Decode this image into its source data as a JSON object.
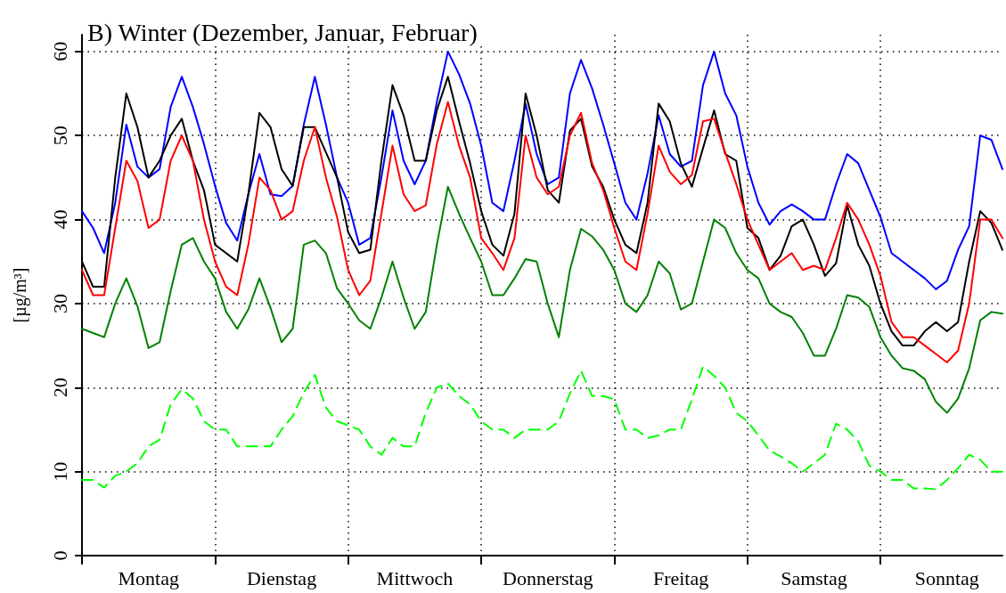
{
  "chart_data": {
    "type": "line",
    "title": "B) Winter (Dezember, Januar, Februar)",
    "ylabel": "[µg/m³]",
    "categories": [
      null,
      null,
      null,
      null,
      null,
      null,
      "Montag",
      null,
      null,
      null,
      null,
      null,
      null,
      null,
      null,
      null,
      null,
      null,
      "Dienstag",
      null,
      null,
      null,
      null,
      null,
      null,
      null,
      null,
      null,
      null,
      null,
      "Mittwoch",
      null,
      null,
      null,
      null,
      null,
      null,
      null,
      null,
      null,
      null,
      null,
      "Donnerstag",
      null,
      null,
      null,
      null,
      null,
      null,
      null,
      null,
      null,
      null,
      null,
      "Freitag",
      null,
      null,
      null,
      null,
      null,
      null,
      null,
      null,
      null,
      null,
      null,
      "Samstag",
      null,
      null,
      null,
      null,
      null,
      null,
      null,
      null,
      null,
      null,
      null,
      "Sonntag",
      null,
      null,
      null,
      null,
      null
    ],
    "ylim": [
      0,
      62
    ],
    "yticks": [
      0,
      10,
      20,
      30,
      40,
      50,
      60
    ],
    "grid": true,
    "marker": "none",
    "line_style": "solid",
    "series": [
      {
        "color": "#0000ff",
        "values": [
          41,
          39,
          36,
          42,
          51.3,
          46.3,
          45,
          46,
          53.4,
          57,
          53.4,
          49,
          44,
          39.6,
          37.5,
          43,
          47.8,
          43,
          42.8,
          44,
          51.3,
          57,
          51.3,
          45,
          42,
          37,
          37.8,
          45,
          53,
          47,
          44.2,
          47,
          54,
          60,
          57.3,
          53.8,
          48.8,
          42,
          41,
          47,
          53.8,
          47.8,
          44.2,
          45,
          55,
          59,
          55.6,
          51.3,
          46.7,
          42,
          40,
          45.5,
          52.4,
          47.8,
          46.3,
          47,
          56,
          60,
          55,
          52.4,
          46.3,
          42,
          39.4,
          41,
          41.8,
          41,
          40,
          40,
          44.2,
          47.8,
          46.7,
          43.5,
          40.3,
          36,
          35,
          34,
          33,
          31.7,
          32.7,
          36.4,
          39.2,
          50,
          49.5,
          46
        ]
      },
      {
        "color": "#000000",
        "values": [
          35,
          32,
          32,
          45,
          55,
          51,
          45,
          47,
          50,
          52,
          47,
          43.5,
          37,
          36,
          35,
          43,
          52.7,
          51,
          46,
          44,
          51,
          51,
          48,
          45,
          38.5,
          36,
          36.4,
          47,
          56,
          52.4,
          47,
          47,
          53,
          57,
          51.7,
          46.7,
          41,
          37,
          35.7,
          40.7,
          55,
          50,
          43.5,
          42,
          50.6,
          52,
          46.3,
          43.9,
          40,
          37,
          36,
          42,
          53.8,
          51.7,
          46.7,
          43.9,
          48.5,
          53,
          47.8,
          47,
          39,
          37.8,
          34,
          35.7,
          39.2,
          40,
          37,
          33.3,
          34.8,
          41.7,
          37,
          34.5,
          30,
          26.7,
          25,
          25,
          26.7,
          27.8,
          26.7,
          27.8,
          35,
          41,
          39.6,
          36.4
        ]
      },
      {
        "color": "#ff0000",
        "values": [
          34,
          31,
          31,
          39,
          47,
          44.6,
          39,
          40,
          47,
          50,
          47,
          40,
          35,
          32,
          31,
          37,
          45,
          43.5,
          40,
          41,
          47,
          51,
          45,
          40.3,
          34,
          31,
          32.7,
          40.7,
          48.8,
          43,
          41,
          41.7,
          49,
          54,
          48.8,
          45,
          37.8,
          36,
          34,
          37.8,
          50,
          45,
          43,
          43.9,
          50,
          52.7,
          46.7,
          43.5,
          39,
          35,
          34,
          40.7,
          48.8,
          45.7,
          44.2,
          45.3,
          51.7,
          52,
          48,
          44.2,
          40,
          37,
          34,
          35,
          36,
          34,
          34.5,
          34,
          37.8,
          42,
          40,
          37,
          33.3,
          27.8,
          26,
          26,
          25,
          24,
          23,
          24.4,
          30,
          40,
          40,
          37.8
        ]
      },
      {
        "color": "#008000",
        "values": [
          27,
          26.5,
          26,
          30,
          33,
          29.7,
          24.7,
          25.4,
          31.5,
          37,
          37.8,
          35,
          33,
          29,
          27,
          29.3,
          33,
          29.5,
          25.4,
          27,
          37,
          37.5,
          36,
          31.8,
          30,
          28,
          27,
          30.7,
          35,
          30.7,
          27,
          29,
          37,
          43.9,
          40.7,
          37.8,
          35,
          31,
          31,
          33,
          35.3,
          35,
          30,
          26,
          34,
          38.9,
          38,
          36.4,
          34,
          30,
          29,
          31,
          35,
          33.6,
          29.3,
          30,
          35,
          40,
          39,
          36,
          34,
          33,
          30,
          29,
          28.4,
          26.5,
          23.8,
          23.8,
          27,
          31,
          30.7,
          29.6,
          26,
          23.8,
          22.3,
          22,
          21,
          18.3,
          17,
          18.7,
          22.3,
          28,
          29,
          28.8
        ]
      },
      {
        "color": "#00ff00",
        "line_style": "dashed",
        "values": [
          9,
          9,
          8.1,
          9.5,
          10,
          11,
          13,
          13.8,
          18,
          19.8,
          18.7,
          16,
          15,
          15,
          13,
          13,
          13,
          13,
          15,
          16.6,
          19.4,
          21.5,
          17.6,
          16,
          15.5,
          15,
          13,
          12,
          14,
          13,
          13,
          17,
          20,
          20.5,
          19,
          18,
          16,
          15,
          15,
          14,
          15,
          15,
          15,
          16,
          19.3,
          22,
          19,
          19,
          18.6,
          15,
          15,
          14,
          14.3,
          15,
          15,
          18.6,
          22.5,
          21.4,
          20,
          17,
          16,
          14.3,
          12.5,
          11.8,
          11,
          10,
          11,
          12,
          15.7,
          15,
          13.6,
          10.7,
          10,
          9,
          9,
          8,
          8,
          7.9,
          9,
          10.4,
          12,
          11.4,
          10,
          10
        ]
      }
    ]
  }
}
